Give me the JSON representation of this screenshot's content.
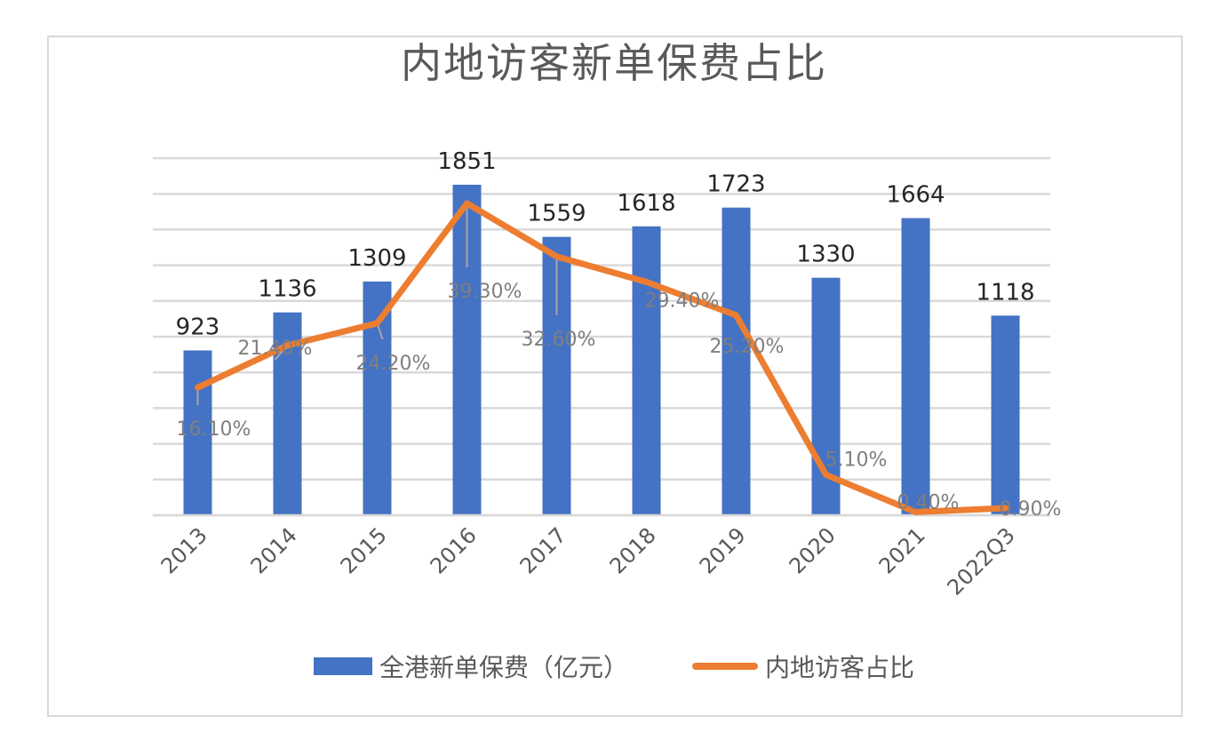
{
  "chart_data": {
    "type": "bar+line",
    "title": "内地访客新单保费占比",
    "categories": [
      "2013",
      "2014",
      "2015",
      "2016",
      "2017",
      "2018",
      "2019",
      "2020",
      "2021",
      "2022Q3"
    ],
    "series": [
      {
        "name": "全港新单保费（亿元）",
        "type": "bar",
        "axis": "primary",
        "color": "#4472c4",
        "values": [
          923,
          1136,
          1309,
          1851,
          1559,
          1618,
          1723,
          1330,
          1664,
          1118
        ],
        "labels": [
          "923",
          "1136",
          "1309",
          "1851",
          "1559",
          "1618",
          "1723",
          "1330",
          "1664",
          "1118"
        ]
      },
      {
        "name": "内地访客占比",
        "type": "line",
        "axis": "secondary",
        "color": "#ed7d31",
        "values": [
          16.1,
          21.4,
          24.2,
          39.3,
          32.6,
          29.4,
          25.2,
          5.1,
          0.4,
          0.9
        ],
        "labels": [
          "16.10%",
          "21.40%",
          "24.20%",
          "39.30%",
          "32.60%",
          "29.40%",
          "25.20%",
          "5.10%",
          "0.40%",
          "0.90%"
        ]
      }
    ],
    "xlabel": "",
    "ylabel": "",
    "ylim": [
      0,
      2000
    ],
    "y_grid_step": 200,
    "y2lim": [
      0,
      45
    ],
    "axes_labels_visible": false,
    "grid": true,
    "legend_position": "bottom"
  },
  "legend": {
    "bar_label": "全港新单保费（亿元）",
    "line_label": "内地访客占比"
  }
}
